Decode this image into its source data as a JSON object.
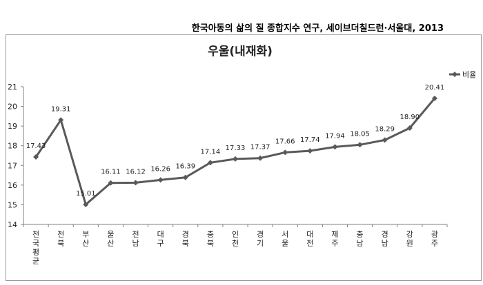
{
  "source_note": "한국아동의 삶의 질 종합지수 연구, 세이브더칠드런·서울대, 2013",
  "chart_data": {
    "type": "line",
    "title": "우울(내재화)",
    "xlabel": "",
    "ylabel": "",
    "ylim": [
      14,
      21
    ],
    "yticks": [
      "14",
      "15",
      "16",
      "17",
      "18",
      "19",
      "20",
      "21"
    ],
    "grid": false,
    "legend_position": "top-right",
    "categories": [
      "전국평균",
      "전북",
      "부산",
      "울산",
      "전남",
      "대구",
      "경북",
      "충북",
      "인천",
      "경기",
      "서울",
      "대전",
      "제주",
      "충남",
      "경남",
      "강원",
      "광주"
    ],
    "series": [
      {
        "name": "비율",
        "color": "#595959",
        "values": [
          17.43,
          19.31,
          15.01,
          16.11,
          16.12,
          16.26,
          16.39,
          17.14,
          17.33,
          17.37,
          17.66,
          17.74,
          17.94,
          18.05,
          18.29,
          18.9,
          20.41
        ],
        "labels": [
          "17.43",
          "19.31",
          "15.01",
          "16.11",
          "16.12",
          "16.26",
          "16.39",
          "17.14",
          "17.33",
          "17.37",
          "17.66",
          "17.74",
          "17.94",
          "18.05",
          "18.29",
          "18.90",
          "20.41"
        ]
      }
    ]
  }
}
